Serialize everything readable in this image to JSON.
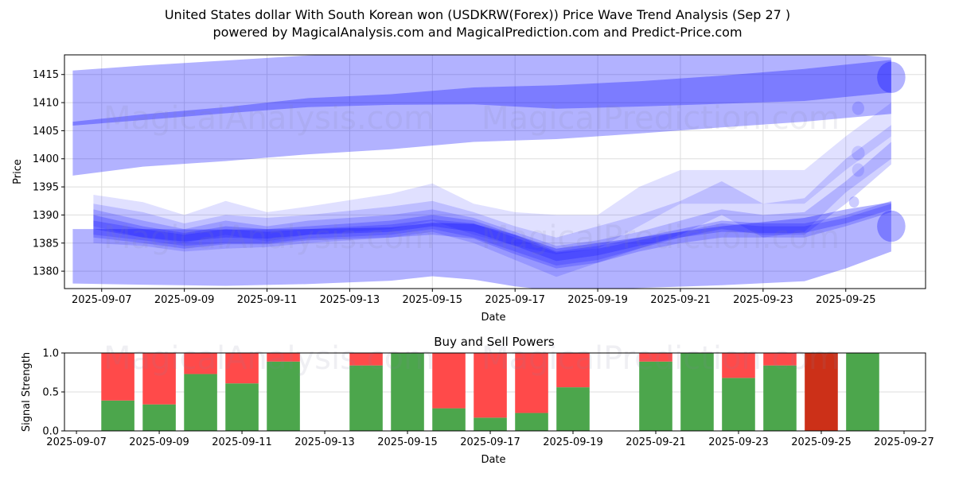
{
  "title_line1": "United States dollar With South Korean won (USDKRW(Forex)) Price Wave Trend Analysis (Sep 27 )",
  "title_line2": "powered by MagicalAnalysis.com and MagicalPrediction.com and Predict-Price.com",
  "watermarks": [
    "MagicalAnalysis.com",
    "MagicalPrediction.com"
  ],
  "colors": {
    "wave_fill": "#0000ff",
    "buy": "#4ca64c",
    "sell": "#ff4a4a",
    "strong_sell": "#cc3018",
    "grid": "#dddddd"
  },
  "chart_data": [
    {
      "type": "area",
      "name": "price-wave",
      "title": "",
      "xlabel": "Date",
      "ylabel": "Price",
      "xlim": [
        "2025-09-06.1",
        "2025-09-26.93"
      ],
      "ylim": [
        1376.9,
        1418.5
      ],
      "yticks": [
        1380,
        1385,
        1390,
        1395,
        1400,
        1405,
        1410,
        1415
      ],
      "xticks": [
        "2025-09-07",
        "2025-09-09",
        "2025-09-11",
        "2025-09-13",
        "2025-09-15",
        "2025-09-17",
        "2025-09-19",
        "2025-09-21",
        "2025-09-23",
        "2025-09-25"
      ],
      "grid": true,
      "bands": [
        {
          "name": "upper-wide",
          "opacity": 0.3,
          "x": [
            6.3,
            8,
            10,
            12,
            14,
            16,
            18,
            20,
            22,
            24,
            26.1
          ],
          "upper": [
            1415.7,
            1416.6,
            1417.5,
            1418.4,
            1418.8,
            1419.0,
            1419.2,
            1419.3,
            1419.4,
            1419.4,
            1418.0
          ],
          "lower": [
            1397.0,
            1398.6,
            1399.6,
            1400.8,
            1401.7,
            1403.0,
            1403.5,
            1404.5,
            1405.6,
            1406.6,
            1408.0
          ]
        },
        {
          "name": "upper-core",
          "opacity": 0.3,
          "x": [
            6.3,
            8,
            10,
            12,
            14,
            16,
            18,
            20,
            22,
            24,
            26.1
          ],
          "upper": [
            1406.6,
            1407.9,
            1409.2,
            1410.8,
            1411.5,
            1412.7,
            1413.1,
            1413.8,
            1414.8,
            1416.0,
            1417.6
          ],
          "lower": [
            1405.9,
            1406.9,
            1408.1,
            1409.2,
            1409.6,
            1409.7,
            1408.9,
            1409.3,
            1409.8,
            1410.3,
            1411.8
          ]
        },
        {
          "name": "lower-wide",
          "opacity": 0.3,
          "x": [
            6.3,
            8,
            10,
            12,
            14,
            15,
            16,
            17,
            18,
            20,
            22,
            24,
            25,
            26.1
          ],
          "upper": [
            1387.5,
            1387.5,
            1387.4,
            1387.5,
            1387.8,
            1388.6,
            1388.4,
            1386.5,
            1384.0,
            1386.0,
            1388.0,
            1389.5,
            1391.0,
            1392.3
          ],
          "lower": [
            1377.8,
            1377.6,
            1377.4,
            1377.7,
            1378.3,
            1379.1,
            1378.5,
            1377.3,
            1376.5,
            1377.0,
            1377.5,
            1378.2,
            1380.5,
            1383.5
          ]
        },
        {
          "name": "wave-1",
          "opacity": 0.12,
          "x": [
            6.8,
            8,
            9,
            10,
            11,
            12,
            14,
            15,
            16,
            17,
            18,
            19,
            20,
            21,
            22,
            23,
            24,
            25,
            26.1
          ],
          "upper": [
            1393.6,
            1392.3,
            1390.0,
            1392.5,
            1390.5,
            1391.5,
            1393.8,
            1395.6,
            1392.0,
            1390.5,
            1390.0,
            1390.0,
            1395.0,
            1398.0,
            1398.0,
            1398.0,
            1398.0,
            1404.0,
            1410.0
          ],
          "lower": [
            1388.0,
            1386.0,
            1385.0,
            1386.5,
            1385.3,
            1386.5,
            1387.5,
            1389.0,
            1386.5,
            1384.5,
            1383.0,
            1384.0,
            1388.0,
            1392.0,
            1392.0,
            1392.0,
            1392.0,
            1398.0,
            1404.0
          ]
        },
        {
          "name": "wave-2",
          "opacity": 0.15,
          "x": [
            6.8,
            8,
            9,
            10,
            11,
            12,
            14,
            15,
            16,
            17,
            18,
            19,
            20,
            21,
            22,
            23,
            24,
            25,
            26.1
          ],
          "upper": [
            1392.0,
            1390.5,
            1388.5,
            1390.0,
            1389.5,
            1390.0,
            1391.5,
            1392.5,
            1390.5,
            1388.0,
            1386.0,
            1388.0,
            1390.0,
            1392.5,
            1396.0,
            1392.0,
            1393.0,
            1400.0,
            1406.0
          ],
          "lower": [
            1385.0,
            1384.5,
            1383.5,
            1384.0,
            1384.3,
            1385.0,
            1386.0,
            1387.0,
            1385.0,
            1382.0,
            1379.0,
            1381.5,
            1384.0,
            1386.5,
            1390.0,
            1386.0,
            1387.0,
            1394.0,
            1400.0
          ]
        },
        {
          "name": "wave-3",
          "opacity": 0.18,
          "x": [
            6.8,
            8,
            9,
            10,
            11,
            12,
            14,
            15,
            16,
            17,
            18,
            19,
            20,
            21,
            22,
            23,
            24,
            25,
            26.1
          ],
          "upper": [
            1391.0,
            1389.0,
            1387.5,
            1389.0,
            1388.0,
            1389.0,
            1390.0,
            1391.0,
            1389.5,
            1387.0,
            1384.5,
            1385.5,
            1387.0,
            1389.0,
            1391.0,
            1390.0,
            1390.5,
            1396.0,
            1403.0
          ],
          "lower": [
            1386.5,
            1385.5,
            1384.5,
            1385.0,
            1385.0,
            1385.8,
            1386.5,
            1387.5,
            1386.0,
            1383.5,
            1381.0,
            1382.0,
            1384.0,
            1386.0,
            1387.5,
            1386.5,
            1386.5,
            1392.0,
            1399.0
          ]
        },
        {
          "name": "wave-4",
          "opacity": 0.22,
          "x": [
            6.8,
            8,
            9,
            10,
            11,
            12,
            14,
            15,
            16,
            17,
            18,
            19,
            20,
            21,
            22,
            23,
            24,
            25,
            26.1
          ],
          "upper": [
            1390.0,
            1388.0,
            1386.8,
            1388.0,
            1387.5,
            1388.0,
            1389.0,
            1390.0,
            1389.0,
            1386.5,
            1383.5,
            1384.5,
            1386.0,
            1387.5,
            1389.0,
            1388.5,
            1388.5,
            1390.0,
            1392.5
          ],
          "lower": [
            1387.5,
            1386.0,
            1385.3,
            1386.0,
            1385.8,
            1386.5,
            1387.0,
            1388.0,
            1387.0,
            1384.5,
            1381.8,
            1382.8,
            1384.5,
            1386.0,
            1387.0,
            1386.8,
            1386.8,
            1388.5,
            1391.0
          ]
        },
        {
          "name": "wave-5",
          "opacity": 0.2,
          "x": [
            6.8,
            8,
            9,
            10,
            11,
            12,
            14,
            15,
            16,
            17,
            18,
            19,
            20,
            21,
            22,
            23,
            24,
            25,
            26.1
          ],
          "upper": [
            1389.0,
            1387.5,
            1386.5,
            1387.5,
            1387.0,
            1387.5,
            1388.3,
            1389.2,
            1388.5,
            1386.0,
            1383.3,
            1384.0,
            1385.5,
            1387.0,
            1388.5,
            1388.0,
            1388.0,
            1389.5,
            1392.0
          ],
          "lower": [
            1386.0,
            1385.0,
            1384.0,
            1384.8,
            1384.8,
            1385.5,
            1386.0,
            1386.5,
            1385.8,
            1383.0,
            1380.5,
            1381.5,
            1383.5,
            1385.0,
            1386.0,
            1386.0,
            1386.0,
            1388.0,
            1390.5
          ]
        }
      ]
    },
    {
      "type": "bar",
      "name": "buy-sell-powers",
      "title": "Buy and Sell Powers",
      "xlabel": "Date",
      "ylabel": "Signal Strength",
      "xlim": [
        "2025-09-06.71",
        "2025-09-27.52"
      ],
      "ylim": [
        0,
        1
      ],
      "yticks": [
        "0.0",
        "0.5",
        "1.0"
      ],
      "xticks": [
        "2025-09-07",
        "2025-09-09",
        "2025-09-11",
        "2025-09-13",
        "2025-09-15",
        "2025-09-17",
        "2025-09-19",
        "2025-09-21",
        "2025-09-23",
        "2025-09-25",
        "2025-09-27"
      ],
      "grid": true,
      "categories": [
        "2025-09-08",
        "2025-09-09",
        "2025-09-10",
        "2025-09-11",
        "2025-09-12",
        "2025-09-14",
        "2025-09-15",
        "2025-09-16",
        "2025-09-17",
        "2025-09-18",
        "2025-09-19",
        "2025-09-21",
        "2025-09-22",
        "2025-09-23",
        "2025-09-24",
        "2025-09-25",
        "2025-09-26"
      ],
      "series": [
        {
          "name": "Buy",
          "values": [
            0.39,
            0.34,
            0.73,
            0.61,
            0.89,
            0.84,
            1.0,
            0.29,
            0.17,
            0.23,
            0.56,
            0.89,
            1.0,
            0.68,
            0.84,
            0.0,
            1.0
          ]
        },
        {
          "name": "Sell",
          "values": [
            0.61,
            0.66,
            0.27,
            0.39,
            0.11,
            0.16,
            0.0,
            0.71,
            0.83,
            0.77,
            0.44,
            0.11,
            0.0,
            0.32,
            0.16,
            1.0,
            0.0
          ]
        }
      ],
      "strong_sell_dates": [
        "2025-09-25"
      ]
    }
  ]
}
